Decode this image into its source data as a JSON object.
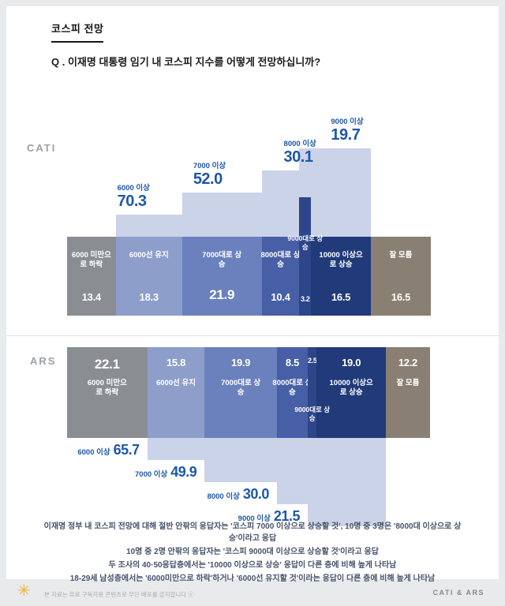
{
  "header": {
    "kicker": "코스피 전망",
    "question": "Q . 이재명 대통령 임기 내 코스피 지수를 어떻게 전망하십니까?"
  },
  "chart_data": {
    "type": "bar",
    "stacked": true,
    "unit": "%",
    "title": "코스피 전망",
    "categories": [
      "6000 미만으로 하락",
      "6000선 유지",
      "7000대로 상승",
      "8000대로 상승",
      "9000대로 상승",
      "10000 이상으로 상승",
      "잘 모름"
    ],
    "segment_colors": [
      "#8a8e93",
      "#8d9ecb",
      "#6a81bd",
      "#475fa7",
      "#2d4589",
      "#203a7a",
      "#8a7f73"
    ],
    "step_color": "#cbd3e8",
    "cumulative_label_color": "#1c57a8",
    "series": [
      {
        "name": "CATI",
        "values": [
          13.4,
          18.3,
          21.9,
          10.4,
          3.2,
          16.5,
          16.5
        ],
        "cumulative": [
          {
            "label": "6000 이상",
            "value": 70.3
          },
          {
            "label": "7000 이상",
            "value": 52.0
          },
          {
            "label": "8000 이상",
            "value": 30.1
          },
          {
            "label": "9000 이상",
            "value": 19.7
          }
        ]
      },
      {
        "name": "ARS",
        "values": [
          22.1,
          15.8,
          19.9,
          8.5,
          2.5,
          19.0,
          12.2
        ],
        "cumulative": [
          {
            "label": "6000 이상",
            "value": 65.7
          },
          {
            "label": "7000 이상",
            "value": 49.9
          },
          {
            "label": "8000 이상",
            "value": 30.0
          },
          {
            "label": "9000 이상",
            "value": 21.5
          }
        ]
      }
    ]
  },
  "summary": {
    "lines": [
      "이재명 정부 내 코스피 전망에 대해 절반 안팎의 응답자는 '코스피 7000 이상으로 상승할 것', 10명 중 3명은 '8000대 이상으로 상승'이라고 응답",
      "10명 중 2명 안팎의 응답자는 '코스피 9000대 이상으로 상승할 것'이라고 응답",
      "두 조사의 40·50응답층에서는 '10000 이상으로 상승' 응답이 다른 층에 비해 높게 나타남",
      "18-29세 남성층에서는 '6000미만으로 하락'하거나 '6000선 유지할 것'이라는 응답이 다른 층에 비해 높게 나타남"
    ]
  },
  "footer": {
    "logo_glyph": "✳",
    "disclaimer": "본 자료는 유료 구독자용 콘텐츠로 무단 배포를 금지합니다 ⓒ",
    "method": "CATI & ARS"
  }
}
